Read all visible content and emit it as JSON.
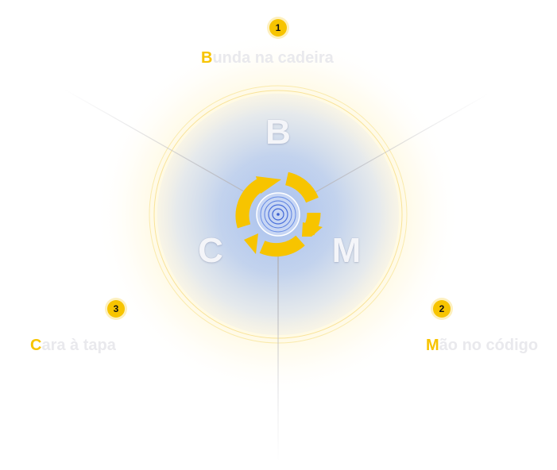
{
  "colors": {
    "accent": "#f7c400",
    "label_text": "#e9e9ed",
    "center_glow": "#aac2ee",
    "center_rings": "#5a7fe0",
    "connector": "#c8c8cc"
  },
  "center": {
    "icon": "cycle-arrows-icon",
    "letters": {
      "b": "B",
      "m": "M",
      "c": "C"
    }
  },
  "steps": [
    {
      "number": "1",
      "initial": "B",
      "rest": "unda na cadeira"
    },
    {
      "number": "2",
      "initial": "M",
      "rest": "ão no código"
    },
    {
      "number": "3",
      "initial": "C",
      "rest": "ara à tapa"
    }
  ]
}
